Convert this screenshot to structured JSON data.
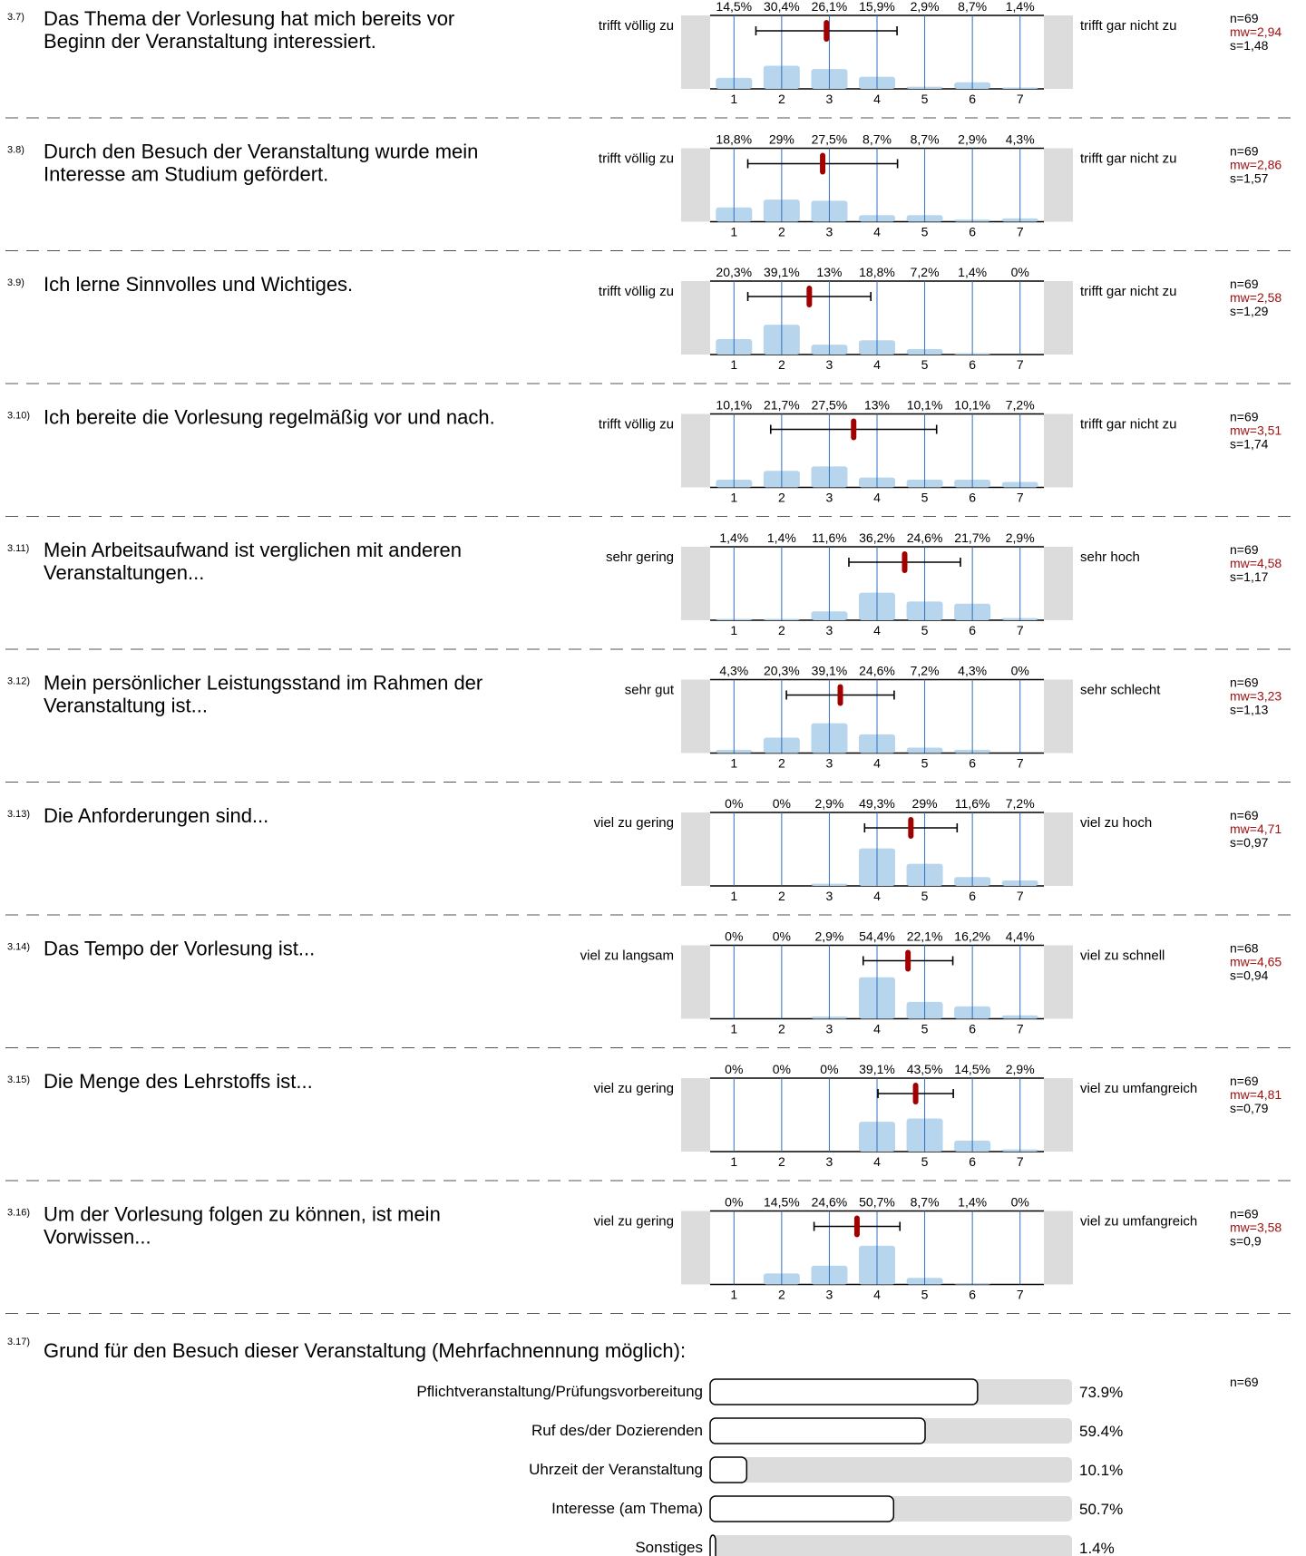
{
  "scale": [
    "1",
    "2",
    "3",
    "4",
    "5",
    "6",
    "7"
  ],
  "colors": {
    "bar": "#b7d5ec",
    "grid": "#2f6fbf",
    "mean": "#a00000",
    "whisker": "#000000",
    "side": "#dcdcdc",
    "mw_text": "#a01010"
  },
  "items": [
    {
      "num": "3.7)",
      "lines": [
        "Das Thema der Vorlesung hat mich bereits vor",
        "Beginn der Veranstaltung interessiert."
      ],
      "left": "trifft völlig zu",
      "right": "trifft gar nicht zu",
      "pct_labels": [
        "14,5%",
        "30,4%",
        "26,1%",
        "15,9%",
        "2,9%",
        "8,7%",
        "1,4%"
      ],
      "pct": [
        14.5,
        30.4,
        26.1,
        15.9,
        2.9,
        8.7,
        1.4
      ],
      "n": "n=69",
      "mw": "mw=2,94",
      "s": "s=1,48",
      "mean": 2.94,
      "sd": 1.48
    },
    {
      "num": "3.8)",
      "lines": [
        "Durch den Besuch der Veranstaltung wurde mein",
        "Interesse am Studium gefördert."
      ],
      "left": "trifft völlig zu",
      "right": "trifft gar nicht zu",
      "pct_labels": [
        "18,8%",
        "29%",
        "27,5%",
        "8,7%",
        "8,7%",
        "2,9%",
        "4,3%"
      ],
      "pct": [
        18.8,
        29,
        27.5,
        8.7,
        8.7,
        2.9,
        4.3
      ],
      "n": "n=69",
      "mw": "mw=2,86",
      "s": "s=1,57",
      "mean": 2.86,
      "sd": 1.57
    },
    {
      "num": "3.9)",
      "lines": [
        "Ich lerne Sinnvolles und Wichtiges."
      ],
      "left": "trifft völlig zu",
      "right": "trifft gar nicht zu",
      "pct_labels": [
        "20,3%",
        "39,1%",
        "13%",
        "18,8%",
        "7,2%",
        "1,4%",
        "0%"
      ],
      "pct": [
        20.3,
        39.1,
        13,
        18.8,
        7.2,
        1.4,
        0
      ],
      "n": "n=69",
      "mw": "mw=2,58",
      "s": "s=1,29",
      "mean": 2.58,
      "sd": 1.29
    },
    {
      "num": "3.10)",
      "lines": [
        "Ich bereite die Vorlesung regelmäßig vor und nach."
      ],
      "left": "trifft völlig zu",
      "right": "trifft gar nicht zu",
      "pct_labels": [
        "10,1%",
        "21,7%",
        "27,5%",
        "13%",
        "10,1%",
        "10,1%",
        "7,2%"
      ],
      "pct": [
        10.1,
        21.7,
        27.5,
        13,
        10.1,
        10.1,
        7.2
      ],
      "n": "n=69",
      "mw": "mw=3,51",
      "s": "s=1,74",
      "mean": 3.51,
      "sd": 1.74
    },
    {
      "num": "3.11)",
      "lines": [
        "Mein Arbeitsaufwand ist verglichen mit anderen",
        "Veranstaltungen..."
      ],
      "left": "sehr gering",
      "right": "sehr hoch",
      "pct_labels": [
        "1,4%",
        "1,4%",
        "11,6%",
        "36,2%",
        "24,6%",
        "21,7%",
        "2,9%"
      ],
      "pct": [
        1.4,
        1.4,
        11.6,
        36.2,
        24.6,
        21.7,
        2.9
      ],
      "n": "n=69",
      "mw": "mw=4,58",
      "s": "s=1,17",
      "mean": 4.58,
      "sd": 1.17
    },
    {
      "num": "3.12)",
      "lines": [
        "Mein persönlicher Leistungsstand im Rahmen der",
        "Veranstaltung ist..."
      ],
      "left": "sehr gut",
      "right": "sehr schlecht",
      "pct_labels": [
        "4,3%",
        "20,3%",
        "39,1%",
        "24,6%",
        "7,2%",
        "4,3%",
        "0%"
      ],
      "pct": [
        4.3,
        20.3,
        39.1,
        24.6,
        7.2,
        4.3,
        0
      ],
      "n": "n=69",
      "mw": "mw=3,23",
      "s": "s=1,13",
      "mean": 3.23,
      "sd": 1.13
    },
    {
      "num": "3.13)",
      "lines": [
        "Die Anforderungen sind..."
      ],
      "left": "viel zu gering",
      "right": "viel zu hoch",
      "pct_labels": [
        "0%",
        "0%",
        "2,9%",
        "49,3%",
        "29%",
        "11,6%",
        "7,2%"
      ],
      "pct": [
        0,
        0,
        2.9,
        49.3,
        29,
        11.6,
        7.2
      ],
      "n": "n=69",
      "mw": "mw=4,71",
      "s": "s=0,97",
      "mean": 4.71,
      "sd": 0.97
    },
    {
      "num": "3.14)",
      "lines": [
        "Das Tempo der Vorlesung ist..."
      ],
      "left": "viel zu langsam",
      "right": "viel zu schnell",
      "pct_labels": [
        "0%",
        "0%",
        "2,9%",
        "54,4%",
        "22,1%",
        "16,2%",
        "4,4%"
      ],
      "pct": [
        0,
        0,
        2.9,
        54.4,
        22.1,
        16.2,
        4.4
      ],
      "n": "n=68",
      "mw": "mw=4,65",
      "s": "s=0,94",
      "mean": 4.65,
      "sd": 0.94
    },
    {
      "num": "3.15)",
      "lines": [
        "Die Menge des Lehrstoffs ist..."
      ],
      "left": "viel zu gering",
      "right": "viel zu umfangreich",
      "pct_labels": [
        "0%",
        "0%",
        "0%",
        "39,1%",
        "43,5%",
        "14,5%",
        "2,9%"
      ],
      "pct": [
        0,
        0,
        0,
        39.1,
        43.5,
        14.5,
        2.9
      ],
      "n": "n=69",
      "mw": "mw=4,81",
      "s": "s=0,79",
      "mean": 4.81,
      "sd": 0.79
    },
    {
      "num": "3.16)",
      "lines": [
        "Um der Vorlesung folgen zu können, ist mein",
        "Vorwissen..."
      ],
      "left": "viel zu gering",
      "right": "viel zu umfangreich",
      "pct_labels": [
        "0%",
        "14,5%",
        "24,6%",
        "50,7%",
        "8,7%",
        "1,4%",
        "0%"
      ],
      "pct": [
        0,
        14.5,
        24.6,
        50.7,
        8.7,
        1.4,
        0
      ],
      "n": "n=69",
      "mw": "mw=3,58",
      "s": "s=0,9",
      "mean": 3.58,
      "sd": 0.9
    }
  ],
  "multi": {
    "num": "3.17)",
    "title": "Grund für den Besuch dieser Veranstaltung (Mehrfachnennung möglich):",
    "n": "n=69",
    "options": [
      {
        "label": "Pflichtveranstaltung/Prüfungsvorbereitung",
        "value_label": "73.9%",
        "value": 73.9
      },
      {
        "label": "Ruf des/der Dozierenden",
        "value_label": "59.4%",
        "value": 59.4
      },
      {
        "label": "Uhrzeit der Veranstaltung",
        "value_label": "10.1%",
        "value": 10.1
      },
      {
        "label": "Interesse (am Thema)",
        "value_label": "50.7%",
        "value": 50.7
      },
      {
        "label": "Sonstiges",
        "value_label": "1.4%",
        "value": 1.4
      }
    ]
  },
  "chart_data": [
    {
      "type": "bar",
      "title": "Das Thema der Vorlesung hat mich bereits vor Beginn der Veranstaltung interessiert.",
      "categories": [
        "1",
        "2",
        "3",
        "4",
        "5",
        "6",
        "7"
      ],
      "values": [
        14.5,
        30.4,
        26.1,
        15.9,
        2.9,
        8.7,
        1.4
      ],
      "mean": 2.94,
      "sd": 1.48,
      "n": 69
    },
    {
      "type": "bar",
      "title": "Durch den Besuch der Veranstaltung wurde mein Interesse am Studium gefördert.",
      "categories": [
        "1",
        "2",
        "3",
        "4",
        "5",
        "6",
        "7"
      ],
      "values": [
        18.8,
        29,
        27.5,
        8.7,
        8.7,
        2.9,
        4.3
      ],
      "mean": 2.86,
      "sd": 1.57,
      "n": 69
    },
    {
      "type": "bar",
      "title": "Ich lerne Sinnvolles und Wichtiges.",
      "categories": [
        "1",
        "2",
        "3",
        "4",
        "5",
        "6",
        "7"
      ],
      "values": [
        20.3,
        39.1,
        13,
        18.8,
        7.2,
        1.4,
        0
      ],
      "mean": 2.58,
      "sd": 1.29,
      "n": 69
    },
    {
      "type": "bar",
      "title": "Ich bereite die Vorlesung regelmäßig vor und nach.",
      "categories": [
        "1",
        "2",
        "3",
        "4",
        "5",
        "6",
        "7"
      ],
      "values": [
        10.1,
        21.7,
        27.5,
        13,
        10.1,
        10.1,
        7.2
      ],
      "mean": 3.51,
      "sd": 1.74,
      "n": 69
    },
    {
      "type": "bar",
      "title": "Mein Arbeitsaufwand ist verglichen mit anderen Veranstaltungen...",
      "categories": [
        "1",
        "2",
        "3",
        "4",
        "5",
        "6",
        "7"
      ],
      "values": [
        1.4,
        1.4,
        11.6,
        36.2,
        24.6,
        21.7,
        2.9
      ],
      "mean": 4.58,
      "sd": 1.17,
      "n": 69
    },
    {
      "type": "bar",
      "title": "Mein persönlicher Leistungsstand im Rahmen der Veranstaltung ist...",
      "categories": [
        "1",
        "2",
        "3",
        "4",
        "5",
        "6",
        "7"
      ],
      "values": [
        4.3,
        20.3,
        39.1,
        24.6,
        7.2,
        4.3,
        0
      ],
      "mean": 3.23,
      "sd": 1.13,
      "n": 69
    },
    {
      "type": "bar",
      "title": "Die Anforderungen sind...",
      "categories": [
        "1",
        "2",
        "3",
        "4",
        "5",
        "6",
        "7"
      ],
      "values": [
        0,
        0,
        2.9,
        49.3,
        29,
        11.6,
        7.2
      ],
      "mean": 4.71,
      "sd": 0.97,
      "n": 69
    },
    {
      "type": "bar",
      "title": "Das Tempo der Vorlesung ist...",
      "categories": [
        "1",
        "2",
        "3",
        "4",
        "5",
        "6",
        "7"
      ],
      "values": [
        0,
        0,
        2.9,
        54.4,
        22.1,
        16.2,
        4.4
      ],
      "mean": 4.65,
      "sd": 0.94,
      "n": 68
    },
    {
      "type": "bar",
      "title": "Die Menge des Lehrstoffs ist...",
      "categories": [
        "1",
        "2",
        "3",
        "4",
        "5",
        "6",
        "7"
      ],
      "values": [
        0,
        0,
        0,
        39.1,
        43.5,
        14.5,
        2.9
      ],
      "mean": 4.81,
      "sd": 0.79,
      "n": 69
    },
    {
      "type": "bar",
      "title": "Um der Vorlesung folgen zu können, ist mein Vorwissen...",
      "categories": [
        "1",
        "2",
        "3",
        "4",
        "5",
        "6",
        "7"
      ],
      "values": [
        0,
        14.5,
        24.6,
        50.7,
        8.7,
        1.4,
        0
      ],
      "mean": 3.58,
      "sd": 0.9,
      "n": 69
    },
    {
      "type": "bar",
      "title": "Grund für den Besuch dieser Veranstaltung (Mehrfachnennung möglich):",
      "categories": [
        "Pflichtveranstaltung/Prüfungsvorbereitung",
        "Ruf des/der Dozierenden",
        "Uhrzeit der Veranstaltung",
        "Interesse (am Thema)",
        "Sonstiges"
      ],
      "values": [
        73.9,
        59.4,
        10.1,
        50.7,
        1.4
      ],
      "n": 69
    }
  ]
}
